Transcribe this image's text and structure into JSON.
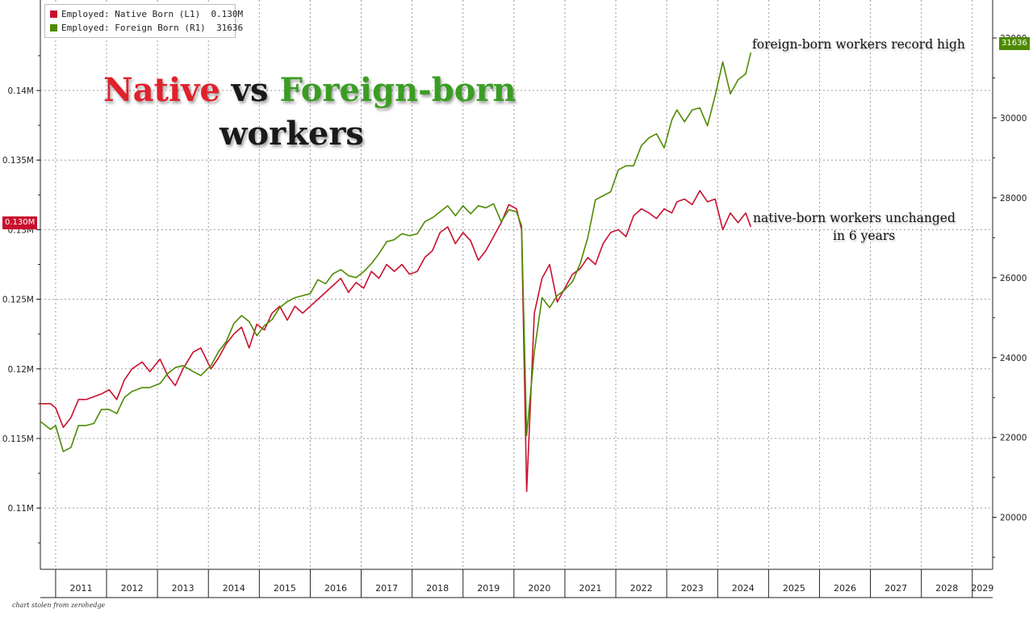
{
  "legend": {
    "native_label": "Employed: Native Born (L1)",
    "native_value": "0.130M",
    "foreign_label": "Employed: Foreign Born (R1)",
    "foreign_value": "31636"
  },
  "title": {
    "native_word": "Native",
    "vs_word": "vs",
    "foreign_word": "Foreign-born",
    "workers_word": "workers"
  },
  "annotations": {
    "foreign_note": "foreign-born workers record high",
    "native_note_line1": "native-born workers unchanged",
    "native_note_line2": "in 6 years"
  },
  "badges": {
    "left_last": "0.130M",
    "right_last": "31636"
  },
  "footnote": "chart stolen from zerohedge",
  "colors": {
    "native": "#c8102e",
    "foreign": "#4e8a00",
    "title_native": "#e0212c",
    "title_foreign": "#3a9d23",
    "title_dark": "#1a1a1a",
    "grid": "#9a9a9a"
  },
  "chart_data": {
    "type": "line",
    "x_ticks": [
      "2011",
      "2012",
      "2013",
      "2014",
      "2015",
      "2016",
      "2017",
      "2018",
      "2019",
      "2020",
      "2021",
      "2022",
      "2023",
      "2024",
      "2025",
      "2026",
      "2027",
      "2028",
      "2029"
    ],
    "xlim": [
      2010.7,
      2029.4
    ],
    "y_left": {
      "ticks": [
        0.11,
        0.115,
        0.12,
        0.125,
        0.13,
        0.135,
        0.14
      ],
      "tick_labels": [
        "0.11M",
        "0.115M",
        "0.12M",
        "0.125M",
        "0.13M",
        "0.135M",
        "0.14M"
      ],
      "lim": [
        0.1056,
        0.1465
      ]
    },
    "y_right": {
      "ticks": [
        20000,
        22000,
        24000,
        26000,
        28000,
        30000,
        32000
      ],
      "tick_labels": [
        "20000",
        "22000",
        "24000",
        "26000",
        "28000",
        "30000",
        "32000"
      ],
      "lim": [
        18700,
        32950
      ]
    },
    "grid": true,
    "legend_position": "top-left",
    "series": [
      {
        "name": "Employed: Native Born (L1)",
        "axis": "left",
        "x": [
          2010.7,
          2010.9,
          2011.0,
          2011.15,
          2011.3,
          2011.45,
          2011.6,
          2011.75,
          2011.9,
          2012.05,
          2012.2,
          2012.35,
          2012.5,
          2012.7,
          2012.85,
          2013.05,
          2013.2,
          2013.35,
          2013.5,
          2013.7,
          2013.85,
          2014.05,
          2014.2,
          2014.35,
          2014.5,
          2014.65,
          2014.8,
          2014.95,
          2015.1,
          2015.25,
          2015.4,
          2015.55,
          2015.7,
          2015.85,
          2016.0,
          2016.15,
          2016.3,
          2016.45,
          2016.6,
          2016.75,
          2016.9,
          2017.05,
          2017.2,
          2017.35,
          2017.5,
          2017.65,
          2017.8,
          2017.95,
          2018.1,
          2018.25,
          2018.4,
          2018.55,
          2018.7,
          2018.85,
          2019.0,
          2019.15,
          2019.3,
          2019.45,
          2019.6,
          2019.75,
          2019.9,
          2020.05,
          2020.15,
          2020.25,
          2020.4,
          2020.55,
          2020.7,
          2020.85,
          2021.0,
          2021.15,
          2021.3,
          2021.45,
          2021.6,
          2021.75,
          2021.9,
          2022.05,
          2022.2,
          2022.35,
          2022.5,
          2022.65,
          2022.8,
          2022.95,
          2023.1,
          2023.2,
          2023.35,
          2023.5,
          2023.65,
          2023.8,
          2023.95,
          2024.1,
          2024.25,
          2024.4,
          2024.55,
          2024.65
        ],
        "values": [
          0.1175,
          0.1175,
          0.1172,
          0.1158,
          0.1165,
          0.1178,
          0.1178,
          0.118,
          0.1182,
          0.1185,
          0.1178,
          0.1192,
          0.12,
          0.1205,
          0.1198,
          0.1207,
          0.1195,
          0.1188,
          0.12,
          0.1212,
          0.1215,
          0.12,
          0.1208,
          0.1218,
          0.1225,
          0.123,
          0.1215,
          0.1232,
          0.1228,
          0.124,
          0.1245,
          0.1235,
          0.1245,
          0.124,
          0.1245,
          0.125,
          0.1255,
          0.126,
          0.1265,
          0.1255,
          0.1262,
          0.1258,
          0.127,
          0.1265,
          0.1275,
          0.127,
          0.1275,
          0.1268,
          0.127,
          0.128,
          0.1285,
          0.1298,
          0.1302,
          0.129,
          0.1298,
          0.1292,
          0.1278,
          0.1285,
          0.1295,
          0.1305,
          0.1318,
          0.1315,
          0.13,
          0.1112,
          0.124,
          0.1265,
          0.1275,
          0.1248,
          0.1258,
          0.1268,
          0.1272,
          0.128,
          0.1275,
          0.129,
          0.1298,
          0.13,
          0.1295,
          0.131,
          0.1315,
          0.1312,
          0.1308,
          0.1315,
          0.1312,
          0.132,
          0.1322,
          0.1318,
          0.1328,
          0.132,
          0.1322,
          0.13,
          0.1312,
          0.1305,
          0.1312,
          0.1302
        ]
      },
      {
        "name": "Employed: Foreign Born (R1)",
        "axis": "right",
        "x": [
          2010.7,
          2010.9,
          2011.0,
          2011.15,
          2011.3,
          2011.45,
          2011.6,
          2011.75,
          2011.9,
          2012.05,
          2012.2,
          2012.35,
          2012.5,
          2012.7,
          2012.85,
          2013.05,
          2013.2,
          2013.35,
          2013.5,
          2013.7,
          2013.85,
          2014.05,
          2014.2,
          2014.35,
          2014.5,
          2014.65,
          2014.8,
          2014.95,
          2015.1,
          2015.25,
          2015.4,
          2015.55,
          2015.7,
          2015.85,
          2016.0,
          2016.15,
          2016.3,
          2016.45,
          2016.6,
          2016.75,
          2016.9,
          2017.05,
          2017.2,
          2017.35,
          2017.5,
          2017.65,
          2017.8,
          2017.95,
          2018.1,
          2018.25,
          2018.4,
          2018.55,
          2018.7,
          2018.85,
          2019.0,
          2019.15,
          2019.3,
          2019.45,
          2019.6,
          2019.75,
          2019.9,
          2020.05,
          2020.15,
          2020.25,
          2020.4,
          2020.55,
          2020.7,
          2020.85,
          2021.0,
          2021.15,
          2021.3,
          2021.45,
          2021.6,
          2021.75,
          2021.9,
          2022.05,
          2022.2,
          2022.35,
          2022.5,
          2022.65,
          2022.8,
          2022.95,
          2023.1,
          2023.2,
          2023.35,
          2023.5,
          2023.65,
          2023.8,
          2023.95,
          2024.1,
          2024.25,
          2024.4,
          2024.55,
          2024.65
        ],
        "values": [
          22400,
          22200,
          22300,
          21650,
          21750,
          22300,
          22300,
          22350,
          22700,
          22700,
          22600,
          23000,
          23150,
          23250,
          23250,
          23350,
          23600,
          23750,
          23800,
          23650,
          23550,
          23800,
          24150,
          24400,
          24850,
          25050,
          24900,
          24550,
          24800,
          24950,
          25250,
          25400,
          25500,
          25550,
          25600,
          25950,
          25850,
          26100,
          26200,
          26050,
          26000,
          26150,
          26350,
          26600,
          26900,
          26950,
          27100,
          27050,
          27100,
          27400,
          27500,
          27650,
          27800,
          27550,
          27800,
          27600,
          27800,
          27750,
          27850,
          27400,
          27700,
          27650,
          27300,
          22050,
          24150,
          25500,
          25250,
          25550,
          25700,
          25900,
          26350,
          27000,
          27950,
          28050,
          28150,
          28700,
          28800,
          28800,
          29300,
          29500,
          29600,
          29250,
          29950,
          30200,
          29900,
          30200,
          30250,
          29800,
          30550,
          31400,
          30600,
          30950,
          31100,
          31636
        ]
      }
    ]
  }
}
